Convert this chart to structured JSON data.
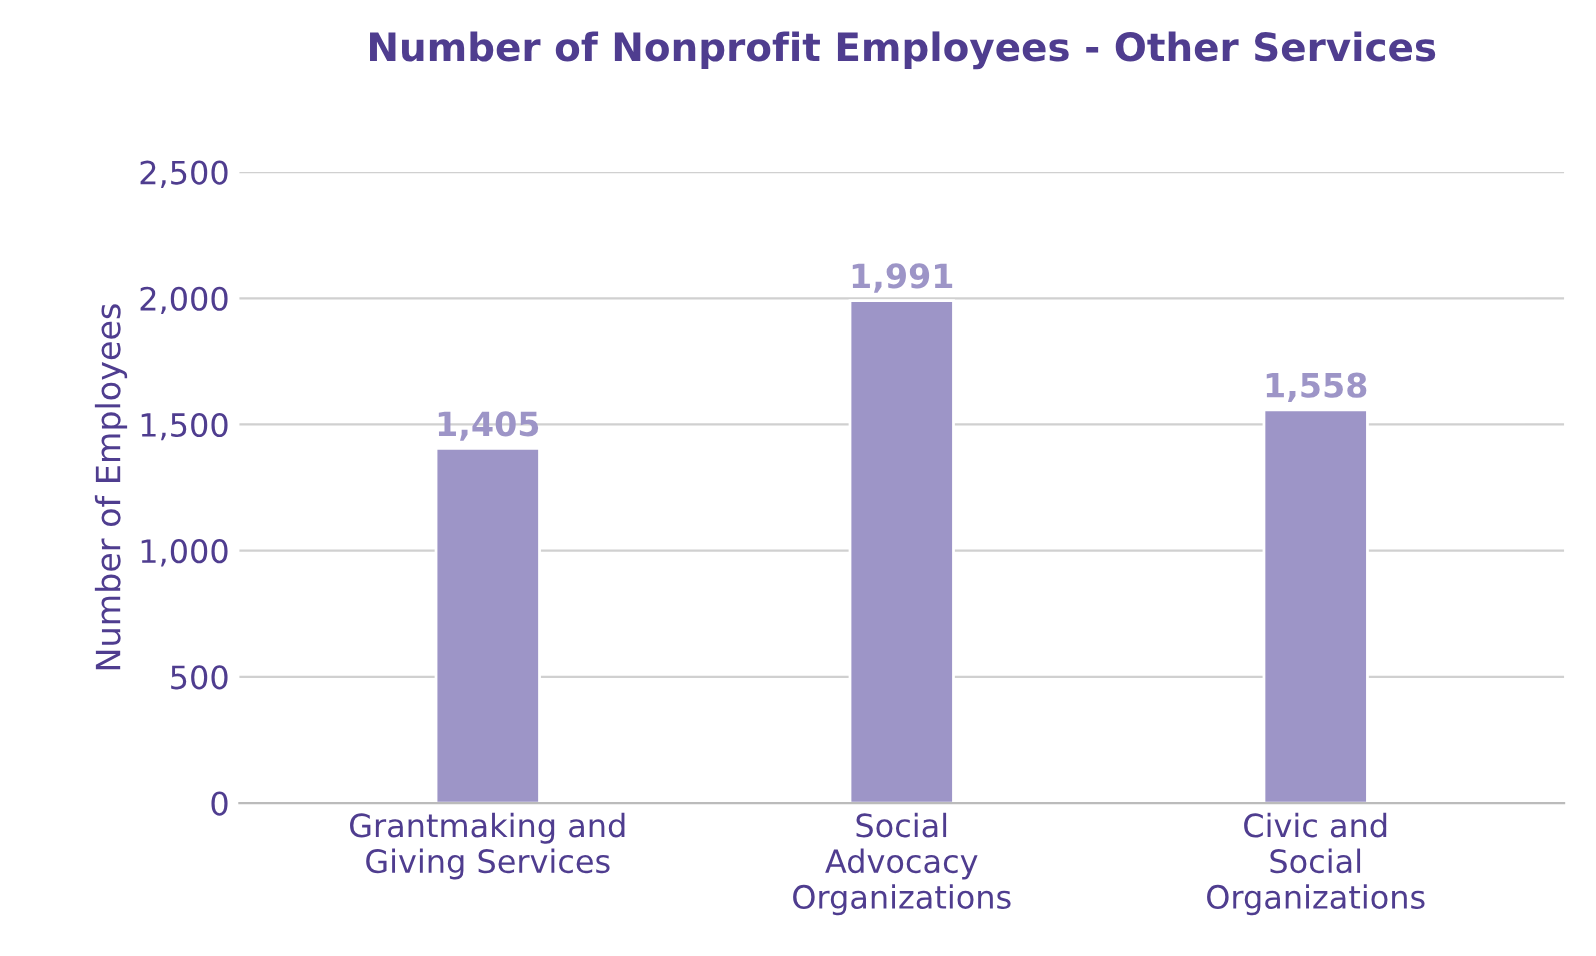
{
  "chart_data": {
    "type": "bar",
    "title": "Number of Nonprofit Employees - Other Services",
    "ylabel": "Number of Employees",
    "categories": [
      "Grantmaking and\nGiving Services",
      "Social\nAdvocacy\nOrganizations",
      "Civic and\nSocial\nOrganizations"
    ],
    "values": [
      1405,
      1991,
      1558
    ],
    "color": "#9d95c7",
    "ylim": [
      0,
      2500
    ],
    "yticks": [
      {
        "value": 0,
        "label": "0"
      },
      {
        "value": 500,
        "label": "500"
      },
      {
        "value": 1000,
        "label": "1,000"
      },
      {
        "value": 1500,
        "label": "1,500"
      },
      {
        "value": 2000,
        "label": "2,000"
      },
      {
        "value": 2500,
        "label": "2,500"
      }
    ],
    "value_labels": [
      "1,405",
      "1,991",
      "1,558"
    ],
    "grid": "y",
    "legend": false
  }
}
